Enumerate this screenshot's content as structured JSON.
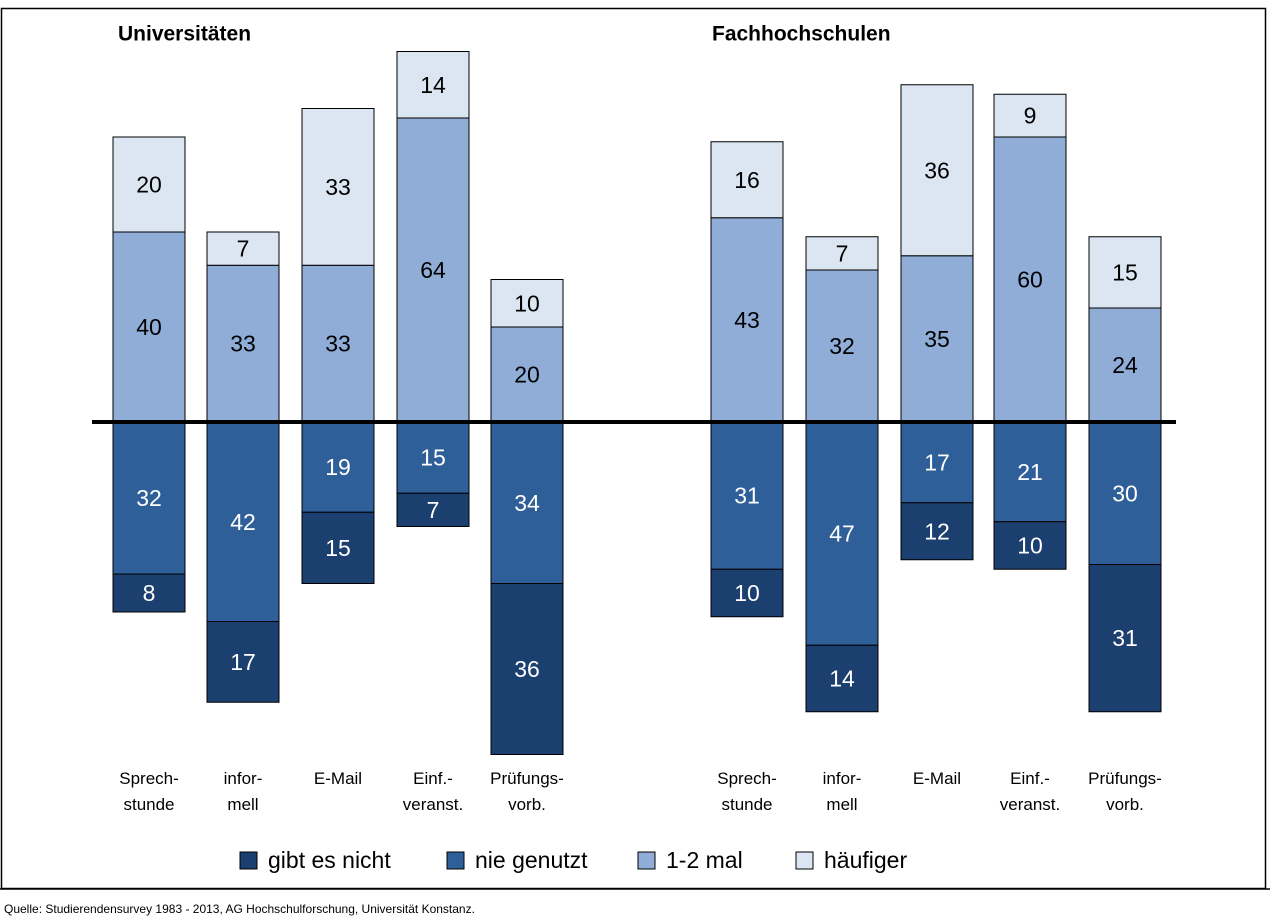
{
  "chart_data": [
    {
      "type": "bar",
      "title": "Universitäten",
      "categories": [
        "Sprech-\nstunde",
        "infor-\nmell",
        "E-Mail",
        "Einf.-\nveranst.",
        "Prüfungs-\nvorb."
      ],
      "ylim": [
        -70,
        80
      ],
      "series": [
        {
          "name": "gibt es nicht",
          "color": "#1b3f6e",
          "values": [
            -8,
            -17,
            -15,
            -7,
            -36
          ],
          "value_labels": [
            "8",
            "17",
            "15",
            "7",
            "36"
          ]
        },
        {
          "name": "nie genutzt",
          "color": "#2f5f98",
          "values": [
            -32,
            -42,
            -19,
            -15,
            -34
          ],
          "value_labels": [
            "32",
            "42",
            "19",
            "15",
            "34"
          ]
        },
        {
          "name": "1-2 mal",
          "color": "#8fadd7",
          "values": [
            40,
            33,
            33,
            64,
            20
          ]
        },
        {
          "name": "häufiger",
          "color": "#dce6f2",
          "values": [
            20,
            7,
            33,
            14,
            10
          ]
        }
      ]
    },
    {
      "type": "bar",
      "title": "Fachhochschulen",
      "categories": [
        "Sprech-\nstunde",
        "infor-\nmell",
        "E-Mail",
        "Einf.-\nveranst.",
        "Prüfungs-\nvorb."
      ],
      "ylim": [
        -70,
        80
      ],
      "series": [
        {
          "name": "gibt es nicht",
          "color": "#1b3f6e",
          "values": [
            -10,
            -14,
            -12,
            -10,
            -31
          ],
          "value_labels": [
            "10",
            "14",
            "12",
            "10",
            "31"
          ]
        },
        {
          "name": "nie genutzt",
          "color": "#2f5f98",
          "values": [
            -31,
            -47,
            -17,
            -21,
            -30
          ],
          "value_labels": [
            "31",
            "47",
            "17",
            "21",
            "30"
          ]
        },
        {
          "name": "1-2 mal",
          "color": "#8fadd7",
          "values": [
            43,
            32,
            35,
            60,
            24
          ]
        },
        {
          "name": "häufiger",
          "color": "#dce6f2",
          "values": [
            16,
            7,
            36,
            9,
            15
          ]
        }
      ]
    }
  ],
  "source": "Quelle: Studierendensurvey 1983 - 2013, AG Hochschulforschung, Universität Konstanz."
}
